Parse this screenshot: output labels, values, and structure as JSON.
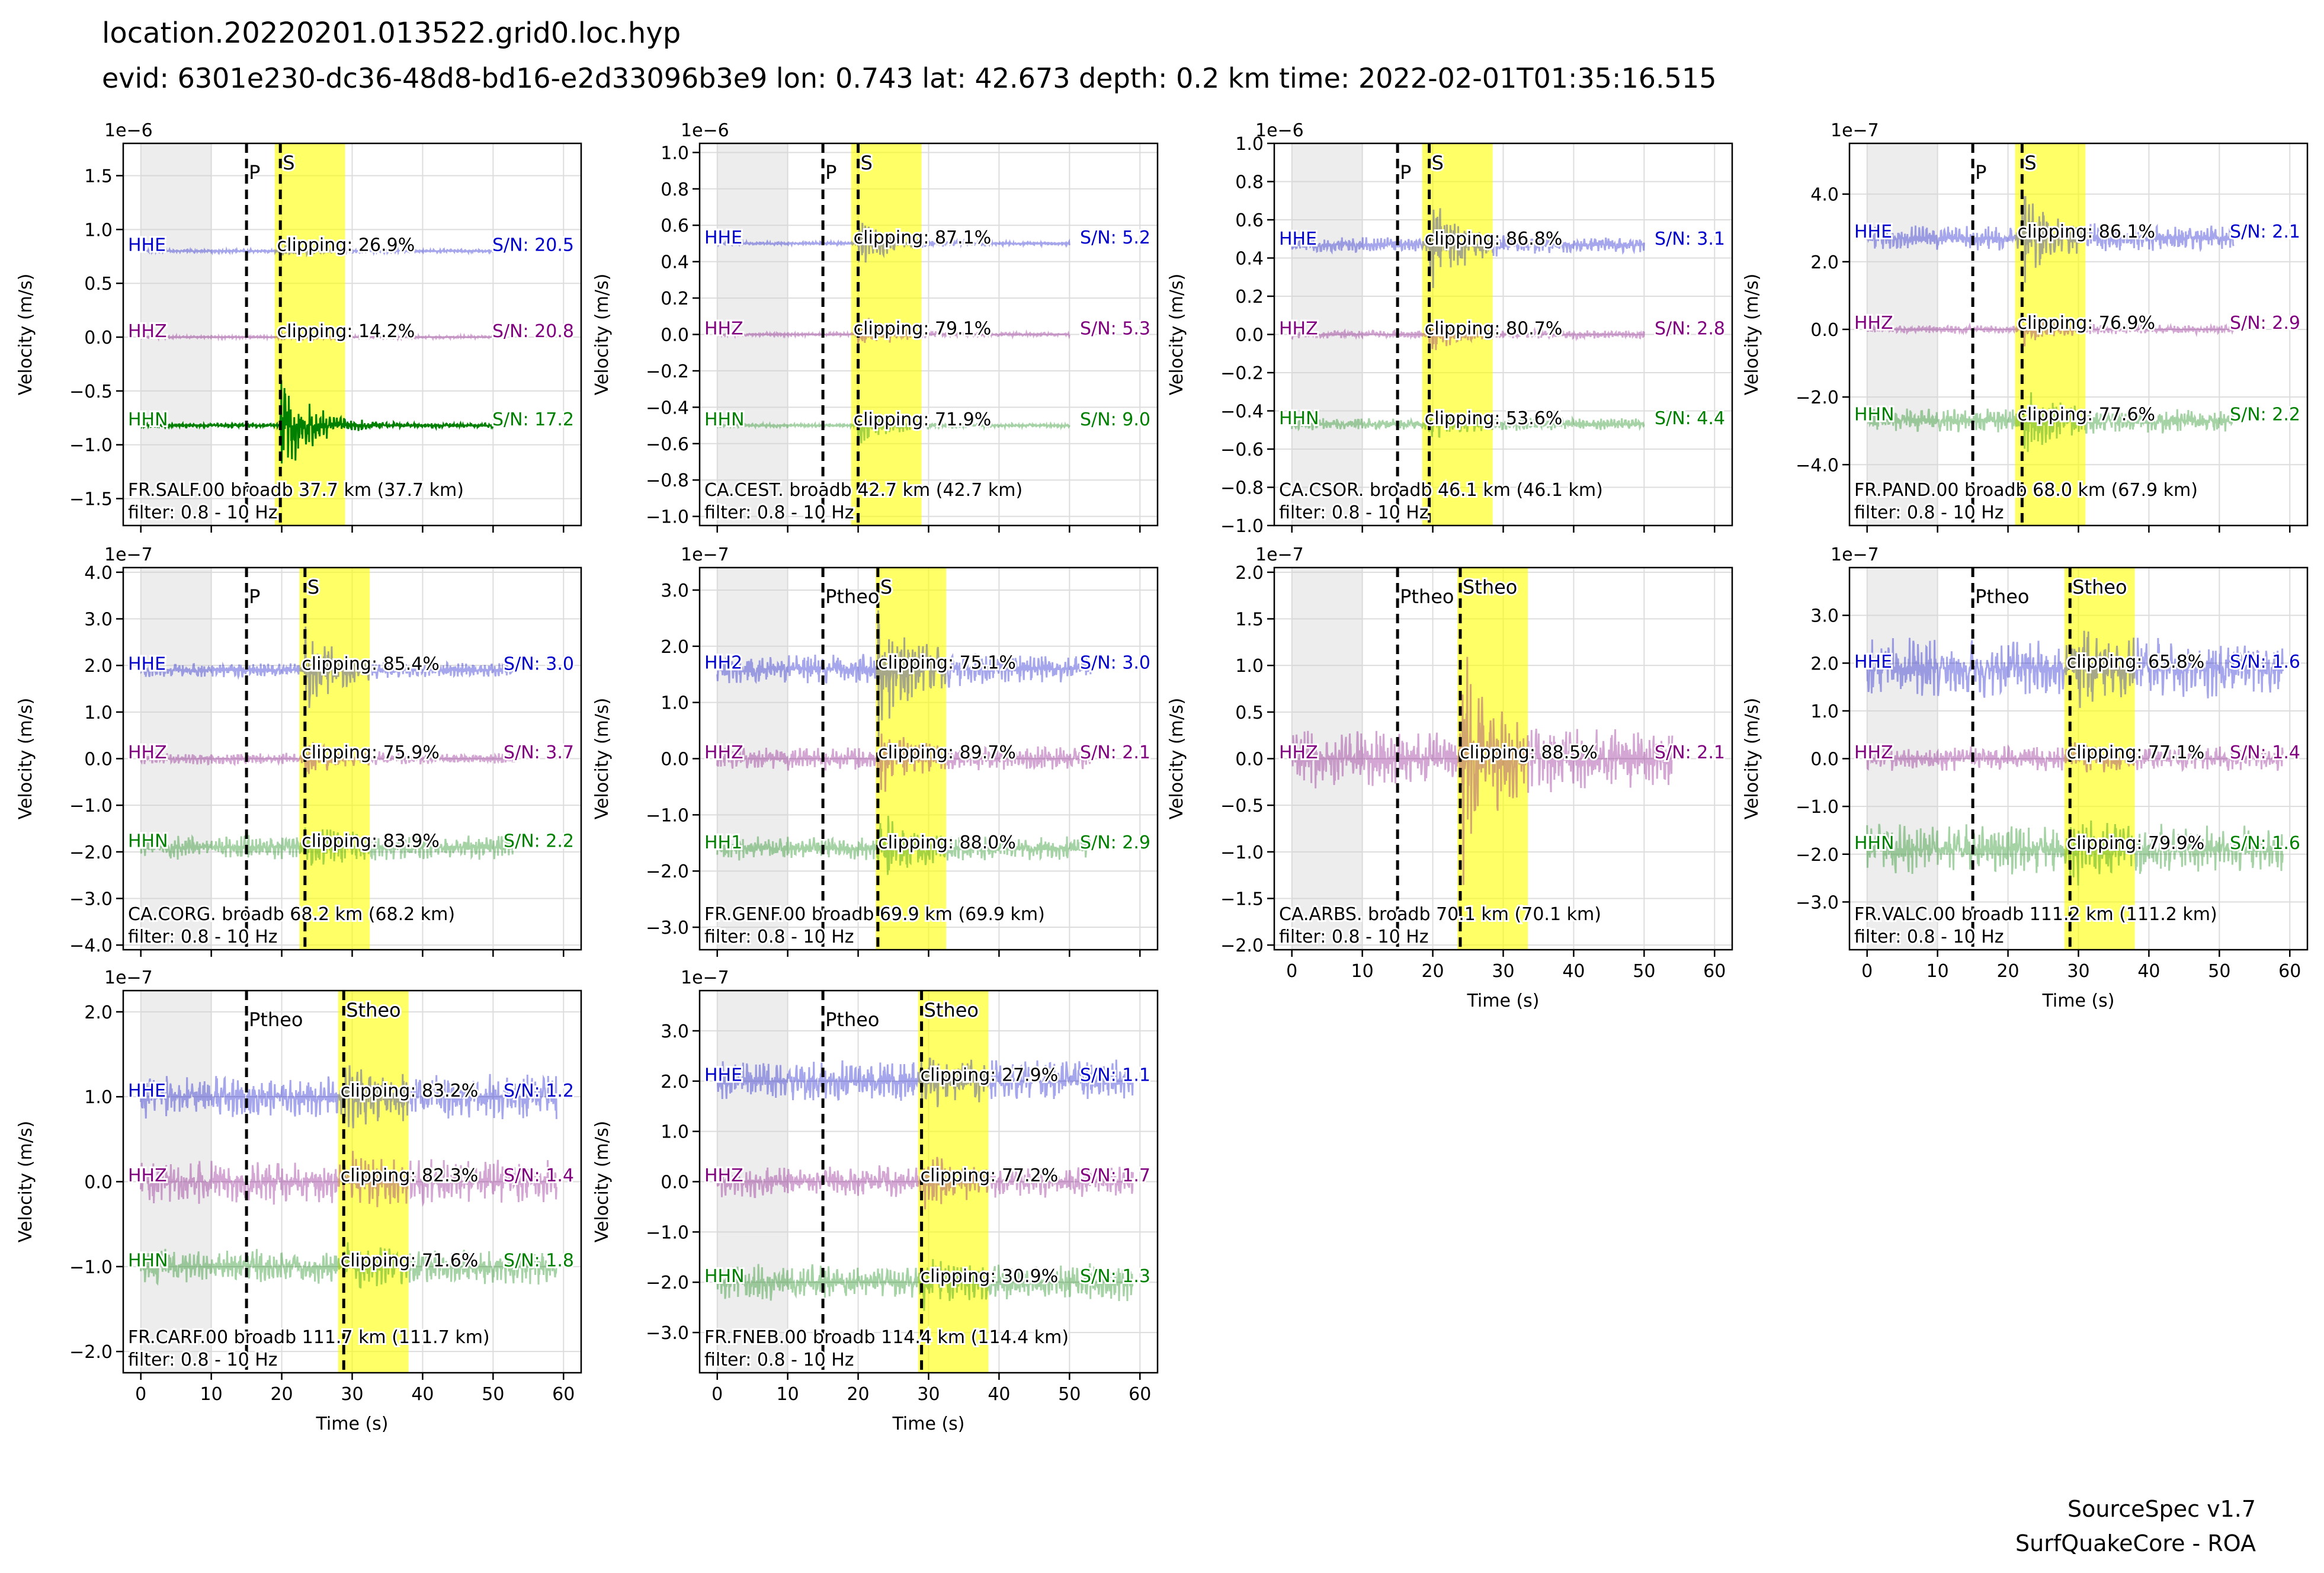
{
  "figure": {
    "title": "location.20220201.013522.grid0.loc.hyp",
    "subtitle": "evid: 6301e230-dc36-48d8-bd16-e2d33096b3e9 lon: 0.743 lat: 42.673 depth: 0.2 km time: 2022-02-01T01:35:16.515",
    "footer_line1": "SourceSpec v1.7",
    "footer_line2": "SurfQuakeCore - ROA"
  },
  "chart_data": [
    {
      "type": "line",
      "station": "FR.SALF.00 broadb 37.7 km (37.7 km)",
      "filter": "filter: 0.8 - 10 Hz",
      "xlabel": "",
      "ylabel": "Velocity (m/s)",
      "scale_label": "1e−6",
      "xlim": [
        -2.5,
        62.5
      ],
      "ylim": [
        -1.75,
        1.8
      ],
      "yticks": [
        -1.5,
        -1.0,
        -0.5,
        0.0,
        0.5,
        1.0,
        1.5
      ],
      "ytick_labels": [
        "−1.5",
        "−1.0",
        "−0.5",
        "0.0",
        "0.5",
        "1.0",
        "1.5"
      ],
      "xticks": [
        0,
        10,
        20,
        30,
        40,
        50,
        60
      ],
      "xtick_labels": [],
      "noise_window": [
        0,
        10
      ],
      "s_window": [
        19,
        29
      ],
      "picks": [
        {
          "label": "P",
          "time": 15.0
        },
        {
          "label": "S",
          "time": 19.8
        }
      ],
      "channels": [
        {
          "name": "HHE",
          "clipping": "clipping: 26.9%",
          "sn": "S/N: 20.5",
          "color": "#0000cc",
          "offset": 0.8,
          "end": 50,
          "base_amp": 0.015,
          "peak_amp": 0.06,
          "alpha": 0.35
        },
        {
          "name": "HHZ",
          "clipping": "clipping: 14.2%",
          "sn": "S/N: 20.8",
          "color": "#800080",
          "offset": 0.0,
          "end": 50,
          "base_amp": 0.012,
          "peak_amp": 0.05,
          "alpha": 0.35
        },
        {
          "name": "HHN",
          "clipping": "",
          "sn": "S/N: 17.2",
          "color": "#008000",
          "offset": -0.82,
          "end": 50,
          "base_amp": 0.02,
          "peak_amp": 0.55,
          "alpha": 1.0
        }
      ]
    },
    {
      "type": "line",
      "station": "CA.CEST. broadb 42.7 km (42.7 km)",
      "filter": "filter: 0.8 - 10 Hz",
      "xlabel": "",
      "ylabel": "Velocity (m/s)",
      "scale_label": "1e−6",
      "xlim": [
        -2.5,
        62.5
      ],
      "ylim": [
        -1.05,
        1.05
      ],
      "yticks": [
        -1.0,
        -0.8,
        -0.6,
        -0.4,
        -0.2,
        0.0,
        0.2,
        0.4,
        0.6,
        0.8,
        1.0
      ],
      "ytick_labels": [
        "−1.0",
        "−0.8",
        "−0.6",
        "−0.4",
        "−0.2",
        "0.0",
        "0.2",
        "0.4",
        "0.6",
        "0.8",
        "1.0"
      ],
      "xticks": [
        0,
        10,
        20,
        30,
        40,
        50,
        60
      ],
      "xtick_labels": [],
      "noise_window": [
        0,
        10
      ],
      "s_window": [
        19,
        29
      ],
      "picks": [
        {
          "label": "P",
          "time": 15.0
        },
        {
          "label": "S",
          "time": 20.0
        }
      ],
      "channels": [
        {
          "name": "HHE",
          "clipping": "clipping: 87.1%",
          "sn": "S/N: 5.2",
          "color": "#0000cc",
          "offset": 0.5,
          "end": 50,
          "base_amp": 0.01,
          "peak_amp": 0.15,
          "alpha": 0.35
        },
        {
          "name": "HHZ",
          "clipping": "clipping: 79.1%",
          "sn": "S/N: 5.3",
          "color": "#800080",
          "offset": 0.0,
          "end": 50,
          "base_amp": 0.01,
          "peak_amp": 0.12,
          "alpha": 0.35
        },
        {
          "name": "HHN",
          "clipping": "clipping: 71.9%",
          "sn": "S/N: 9.0",
          "color": "#008000",
          "offset": -0.5,
          "end": 50,
          "base_amp": 0.01,
          "peak_amp": 0.12,
          "alpha": 0.35
        }
      ]
    },
    {
      "type": "line",
      "station": "CA.CSOR. broadb 46.1 km (46.1 km)",
      "filter": "filter: 0.8 - 10 Hz",
      "xlabel": "",
      "ylabel": "Velocity (m/s)",
      "scale_label": "1e−6",
      "xlim": [
        -2.5,
        62.5
      ],
      "ylim": [
        -1.0,
        1.0
      ],
      "yticks": [
        -1.0,
        -0.8,
        -0.6,
        -0.4,
        -0.2,
        0.0,
        0.2,
        0.4,
        0.6,
        0.8,
        1.0
      ],
      "ytick_labels": [
        "−1.0",
        "−0.8",
        "−0.6",
        "−0.4",
        "−0.2",
        "0.0",
        "0.2",
        "0.4",
        "0.6",
        "0.8",
        "1.0"
      ],
      "xticks": [
        0,
        10,
        20,
        30,
        40,
        50,
        60
      ],
      "xtick_labels": [],
      "noise_window": [
        0,
        10
      ],
      "s_window": [
        18.5,
        28.5
      ],
      "picks": [
        {
          "label": "P",
          "time": 15.0
        },
        {
          "label": "S",
          "time": 19.5
        }
      ],
      "channels": [
        {
          "name": "HHE",
          "clipping": "clipping: 86.8%",
          "sn": "S/N: 3.1",
          "color": "#0000cc",
          "offset": 0.47,
          "end": 50,
          "base_amp": 0.04,
          "peak_amp": 0.28,
          "alpha": 0.35
        },
        {
          "name": "HHZ",
          "clipping": "clipping: 80.7%",
          "sn": "S/N: 2.8",
          "color": "#800080",
          "offset": 0.0,
          "end": 50,
          "base_amp": 0.02,
          "peak_amp": 0.1,
          "alpha": 0.35
        },
        {
          "name": "HHN",
          "clipping": "clipping: 53.6%",
          "sn": "S/N: 4.4",
          "color": "#008000",
          "offset": -0.47,
          "end": 50,
          "base_amp": 0.03,
          "peak_amp": 0.08,
          "alpha": 0.35
        }
      ]
    },
    {
      "type": "line",
      "station": "FR.PAND.00 broadb 68.0 km (67.9 km)",
      "filter": "filter: 0.8 - 10 Hz",
      "xlabel": "",
      "ylabel": "Velocity (m/s)",
      "scale_label": "1e−7",
      "xlim": [
        -2.5,
        62.5
      ],
      "ylim": [
        -5.8,
        5.5
      ],
      "yticks": [
        -4,
        -2,
        0,
        2,
        4
      ],
      "ytick_labels": [
        "−4.0",
        "−2.0",
        "0.0",
        "2.0",
        "4.0"
      ],
      "xticks": [
        0,
        10,
        20,
        30,
        40,
        50,
        60
      ],
      "xtick_labels": [],
      "noise_window": [
        0,
        10
      ],
      "s_window": [
        21,
        31
      ],
      "picks": [
        {
          "label": "P",
          "time": 15.0
        },
        {
          "label": "S",
          "time": 22.0
        }
      ],
      "channels": [
        {
          "name": "HHE",
          "clipping": "clipping: 86.1%",
          "sn": "S/N: 2.1",
          "color": "#0000cc",
          "offset": 2.7,
          "end": 52,
          "base_amp": 0.35,
          "peak_amp": 1.5,
          "alpha": 0.35
        },
        {
          "name": "HHZ",
          "clipping": "clipping: 76.9%",
          "sn": "S/N: 2.9",
          "color": "#800080",
          "offset": 0.0,
          "end": 52,
          "base_amp": 0.12,
          "peak_amp": 0.5,
          "alpha": 0.35
        },
        {
          "name": "HHN",
          "clipping": "clipping: 77.6%",
          "sn": "S/N: 2.2",
          "color": "#008000",
          "offset": -2.7,
          "end": 52,
          "base_amp": 0.35,
          "peak_amp": 1.2,
          "alpha": 0.35
        }
      ]
    },
    {
      "type": "line",
      "station": "CA.CORG. broadb 68.2 km (68.2 km)",
      "filter": "filter: 0.8 - 10 Hz",
      "xlabel": "",
      "ylabel": "Velocity (m/s)",
      "scale_label": "1e−7",
      "xlim": [
        -2.5,
        62.5
      ],
      "ylim": [
        -4.1,
        4.1
      ],
      "yticks": [
        -4,
        -3,
        -2,
        -1,
        0,
        1,
        2,
        3,
        4
      ],
      "ytick_labels": [
        "−4.0",
        "−3.0",
        "−2.0",
        "−1.0",
        "0.0",
        "1.0",
        "2.0",
        "3.0",
        "4.0"
      ],
      "xticks": [
        0,
        10,
        20,
        30,
        40,
        50,
        60
      ],
      "xtick_labels": [],
      "noise_window": [
        0,
        10
      ],
      "s_window": [
        22.5,
        32.5
      ],
      "picks": [
        {
          "label": "P",
          "time": 15.0
        },
        {
          "label": "S",
          "time": 23.3
        }
      ],
      "channels": [
        {
          "name": "HHE",
          "clipping": "clipping: 85.4%",
          "sn": "S/N: 3.0",
          "color": "#0000cc",
          "offset": 1.9,
          "end": 53,
          "base_amp": 0.15,
          "peak_amp": 1.0,
          "alpha": 0.35
        },
        {
          "name": "HHZ",
          "clipping": "clipping: 75.9%",
          "sn": "S/N: 3.7",
          "color": "#800080",
          "offset": 0.0,
          "end": 53,
          "base_amp": 0.12,
          "peak_amp": 0.5,
          "alpha": 0.35
        },
        {
          "name": "HHN",
          "clipping": "clipping: 83.9%",
          "sn": "S/N: 2.2",
          "color": "#008000",
          "offset": -1.9,
          "end": 53,
          "base_amp": 0.25,
          "peak_amp": 0.6,
          "alpha": 0.35
        }
      ]
    },
    {
      "type": "line",
      "station": "FR.GENF.00 broadb 69.9 km (69.9 km)",
      "filter": "filter: 0.8 - 10 Hz",
      "xlabel": "",
      "ylabel": "Velocity (m/s)",
      "scale_label": "1e−7",
      "xlim": [
        -2.5,
        62.5
      ],
      "ylim": [
        -3.4,
        3.4
      ],
      "yticks": [
        -3,
        -2,
        -1,
        0,
        1,
        2,
        3
      ],
      "ytick_labels": [
        "−3.0",
        "−2.0",
        "−1.0",
        "0.0",
        "1.0",
        "2.0",
        "3.0"
      ],
      "xticks": [
        0,
        10,
        20,
        30,
        40,
        50,
        60
      ],
      "xtick_labels": [],
      "noise_window": [
        0,
        10
      ],
      "s_window": [
        22.5,
        32.5
      ],
      "picks": [
        {
          "label": "Ptheo",
          "time": 15.0
        },
        {
          "label": "S",
          "time": 22.8
        }
      ],
      "channels": [
        {
          "name": "HH2",
          "clipping": "clipping: 75.1%",
          "sn": "S/N: 3.0",
          "color": "#0000cc",
          "offset": 1.6,
          "end": 53,
          "base_amp": 0.25,
          "peak_amp": 1.3,
          "alpha": 0.35
        },
        {
          "name": "HHZ",
          "clipping": "clipping: 89.7%",
          "sn": "S/N: 2.1",
          "color": "#800080",
          "offset": 0.0,
          "end": 53,
          "base_amp": 0.2,
          "peak_amp": 0.7,
          "alpha": 0.35
        },
        {
          "name": "HH1",
          "clipping": "clipping: 88.0%",
          "sn": "S/N: 2.9",
          "color": "#008000",
          "offset": -1.6,
          "end": 53,
          "base_amp": 0.2,
          "peak_amp": 0.7,
          "alpha": 0.35
        }
      ]
    },
    {
      "type": "line",
      "station": "CA.ARBS. broadb 70.1 km (70.1 km)",
      "filter": "filter: 0.8 - 10 Hz",
      "xlabel": "Time (s)",
      "ylabel": "Velocity (m/s)",
      "scale_label": "1e−7",
      "xlim": [
        -2.5,
        62.5
      ],
      "ylim": [
        -2.05,
        2.05
      ],
      "yticks": [
        -2.0,
        -1.5,
        -1.0,
        -0.5,
        0.0,
        0.5,
        1.0,
        1.5,
        2.0
      ],
      "ytick_labels": [
        "−2.0",
        "−1.5",
        "−1.0",
        "−0.5",
        "0.0",
        "0.5",
        "1.0",
        "1.5",
        "2.0"
      ],
      "xticks": [
        0,
        10,
        20,
        30,
        40,
        50,
        60
      ],
      "xtick_labels": [
        "0",
        "10",
        "20",
        "30",
        "40",
        "50",
        "60"
      ],
      "noise_window": [
        0,
        10
      ],
      "s_window": [
        23.5,
        33.5
      ],
      "picks": [
        {
          "label": "Ptheo",
          "time": 15.0
        },
        {
          "label": "Stheo",
          "time": 23.9
        }
      ],
      "channels": [
        {
          "name": "HHZ",
          "clipping": "clipping: 88.5%",
          "sn": "S/N: 2.1",
          "color": "#800080",
          "offset": 0.0,
          "end": 54,
          "base_amp": 0.3,
          "peak_amp": 1.4,
          "alpha": 0.35
        }
      ]
    },
    {
      "type": "line",
      "station": "FR.VALC.00 broadb 111.2 km (111.2 km)",
      "filter": "filter: 0.8 - 10 Hz",
      "xlabel": "Time (s)",
      "ylabel": "Velocity (m/s)",
      "scale_label": "1e−7",
      "xlim": [
        -2.5,
        62.5
      ],
      "ylim": [
        -4.0,
        4.0
      ],
      "yticks": [
        -3,
        -2,
        -1,
        0,
        1,
        2,
        3
      ],
      "ytick_labels": [
        "−3.0",
        "−2.0",
        "−1.0",
        "0.0",
        "1.0",
        "2.0",
        "3.0"
      ],
      "xticks": [
        0,
        10,
        20,
        30,
        40,
        50,
        60
      ],
      "xtick_labels": [
        "0",
        "10",
        "20",
        "30",
        "40",
        "50",
        "60"
      ],
      "noise_window": [
        0,
        10
      ],
      "s_window": [
        28,
        38
      ],
      "picks": [
        {
          "label": "Ptheo",
          "time": 15.0
        },
        {
          "label": "Stheo",
          "time": 28.8
        }
      ],
      "channels": [
        {
          "name": "HHE",
          "clipping": "clipping: 65.8%",
          "sn": "S/N: 1.6",
          "color": "#0000cc",
          "offset": 1.9,
          "end": 59,
          "base_amp": 0.6,
          "peak_amp": 1.0,
          "alpha": 0.35
        },
        {
          "name": "HHZ",
          "clipping": "clipping: 77.1%",
          "sn": "S/N: 1.4",
          "color": "#800080",
          "offset": 0.0,
          "end": 59,
          "base_amp": 0.25,
          "peak_amp": 0.4,
          "alpha": 0.35
        },
        {
          "name": "HHN",
          "clipping": "clipping: 79.9%",
          "sn": "S/N: 1.6",
          "color": "#008000",
          "offset": -1.9,
          "end": 59,
          "base_amp": 0.5,
          "peak_amp": 0.8,
          "alpha": 0.35
        }
      ]
    },
    {
      "type": "line",
      "station": "FR.CARF.00 broadb 111.7 km (111.7 km)",
      "filter": "filter: 0.8 - 10 Hz",
      "xlabel": "Time (s)",
      "ylabel": "Velocity (m/s)",
      "scale_label": "1e−7",
      "xlim": [
        -2.5,
        62.5
      ],
      "ylim": [
        -2.25,
        2.25
      ],
      "yticks": [
        -2,
        -1,
        0,
        1,
        2
      ],
      "ytick_labels": [
        "−2.0",
        "−1.0",
        "0.0",
        "1.0",
        "2.0"
      ],
      "xticks": [
        0,
        10,
        20,
        30,
        40,
        50,
        60
      ],
      "xtick_labels": [
        "0",
        "10",
        "20",
        "30",
        "40",
        "50",
        "60"
      ],
      "noise_window": [
        0,
        10
      ],
      "s_window": [
        28,
        38
      ],
      "picks": [
        {
          "label": "Ptheo",
          "time": 15.0
        },
        {
          "label": "Stheo",
          "time": 28.8
        }
      ],
      "channels": [
        {
          "name": "HHE",
          "clipping": "clipping: 83.2%",
          "sn": "S/N: 1.2",
          "color": "#0000cc",
          "offset": 1.0,
          "end": 59,
          "base_amp": 0.25,
          "peak_amp": 0.45,
          "alpha": 0.35
        },
        {
          "name": "HHZ",
          "clipping": "clipping: 82.3%",
          "sn": "S/N: 1.4",
          "color": "#800080",
          "offset": 0.0,
          "end": 59,
          "base_amp": 0.25,
          "peak_amp": 0.4,
          "alpha": 0.35
        },
        {
          "name": "HHN",
          "clipping": "clipping: 71.6%",
          "sn": "S/N: 1.8",
          "color": "#008000",
          "offset": -1.0,
          "end": 59,
          "base_amp": 0.2,
          "peak_amp": 0.35,
          "alpha": 0.35
        }
      ]
    },
    {
      "type": "line",
      "station": "FR.FNEB.00 broadb 114.4 km (114.4 km)",
      "filter": "filter: 0.8 - 10 Hz",
      "xlabel": "Time (s)",
      "ylabel": "Velocity (m/s)",
      "scale_label": "1e−7",
      "xlim": [
        -2.5,
        62.5
      ],
      "ylim": [
        -3.8,
        3.8
      ],
      "yticks": [
        -3,
        -2,
        -1,
        0,
        1,
        2,
        3
      ],
      "ytick_labels": [
        "−3.0",
        "−2.0",
        "−1.0",
        "0.0",
        "1.0",
        "2.0",
        "3.0"
      ],
      "xticks": [
        0,
        10,
        20,
        30,
        40,
        50,
        60
      ],
      "xtick_labels": [
        "0",
        "10",
        "20",
        "30",
        "40",
        "50",
        "60"
      ],
      "noise_window": [
        0,
        10
      ],
      "s_window": [
        28.5,
        38.5
      ],
      "picks": [
        {
          "label": "Ptheo",
          "time": 15.0
        },
        {
          "label": "Stheo",
          "time": 29.0
        }
      ],
      "channels": [
        {
          "name": "HHE",
          "clipping": "clipping: 27.9%",
          "sn": "S/N: 1.1",
          "color": "#0000cc",
          "offset": 2.0,
          "end": 59,
          "base_amp": 0.4,
          "peak_amp": 0.7,
          "alpha": 0.35
        },
        {
          "name": "HHZ",
          "clipping": "clipping: 77.2%",
          "sn": "S/N: 1.7",
          "color": "#800080",
          "offset": 0.0,
          "end": 59,
          "base_amp": 0.3,
          "peak_amp": 0.6,
          "alpha": 0.35
        },
        {
          "name": "HHN",
          "clipping": "clipping: 30.9%",
          "sn": "S/N: 1.3",
          "color": "#008000",
          "offset": -2.0,
          "end": 59,
          "base_amp": 0.35,
          "peak_amp": 0.6,
          "alpha": 0.35
        }
      ]
    }
  ]
}
